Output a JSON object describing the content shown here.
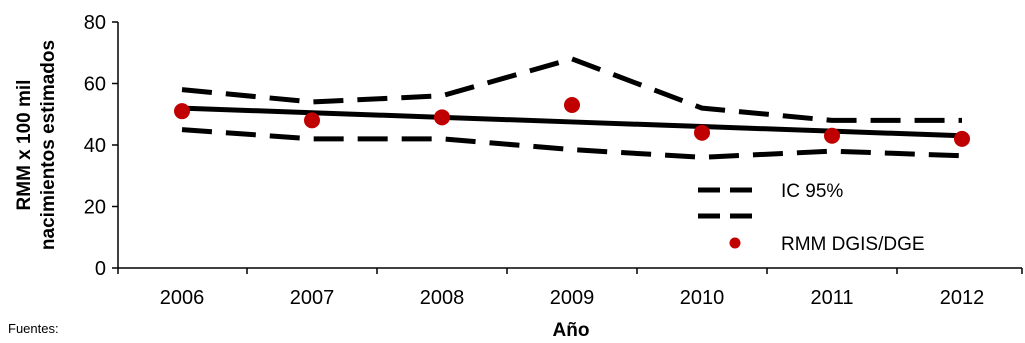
{
  "chart_data": {
    "type": "line",
    "x": [
      "2006",
      "2007",
      "2008",
      "2009",
      "2010",
      "2011",
      "2012"
    ],
    "series": [
      {
        "name": "IC 95%",
        "style": "dashed",
        "color": "#000000",
        "values": [
          58,
          54,
          56,
          68,
          52,
          48,
          48
        ]
      },
      {
        "name": "",
        "style": "dashed",
        "color": "#000000",
        "values": [
          45,
          42,
          42,
          38.5,
          36,
          38,
          36.5
        ]
      },
      {
        "name": "",
        "style": "solid",
        "color": "#000000",
        "values": [
          52,
          50.5,
          49,
          47.5,
          46,
          44.5,
          43
        ]
      },
      {
        "name": "RMM DGIS/DGE",
        "style": "markers",
        "color": "#c00000",
        "values": [
          51,
          48,
          49,
          53,
          44,
          43,
          42
        ]
      }
    ],
    "xlabel": "Año",
    "ylabel_line1": "RMM x 100 mil",
    "ylabel_line2": "nacimientos estimados",
    "ylim": [
      0,
      80
    ],
    "yticks": [
      0,
      20,
      40,
      60,
      80
    ],
    "grid": false,
    "legend_position": "bottom-right"
  },
  "footer": {
    "source": "Fuentes:"
  }
}
